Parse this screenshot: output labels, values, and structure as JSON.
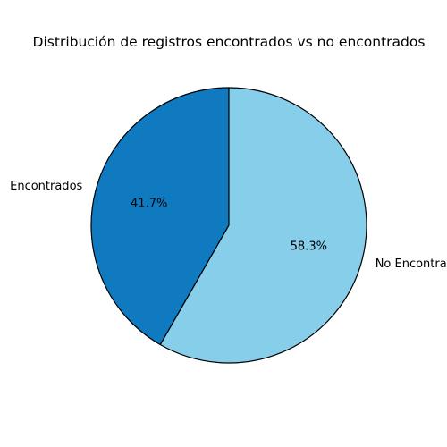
{
  "chart_data": {
    "type": "pie",
    "title": "Distribución de registros encontrados vs no encontrados",
    "slices": [
      {
        "label": "Encontrados",
        "value": 41.7,
        "pct_label": "41.7%",
        "color": "#0f7abf"
      },
      {
        "label": "No Encontrados",
        "value": 58.3,
        "pct_label": "58.3%",
        "color": "#87ceeb"
      }
    ],
    "start_angle_deg": 90,
    "direction": "counterclockwise",
    "edge_color": "#000000",
    "legend": "none"
  }
}
